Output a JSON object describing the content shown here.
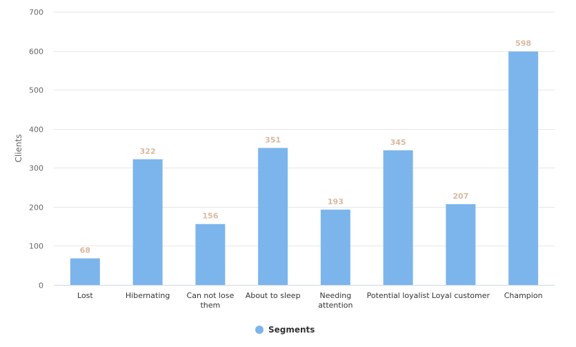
{
  "chart_data": {
    "type": "bar",
    "categories": [
      [
        "Lost"
      ],
      [
        "Hibernating"
      ],
      [
        "Can not lose",
        "them"
      ],
      [
        "About to sleep"
      ],
      [
        "Needing",
        "attention"
      ],
      [
        "Potential loyalist"
      ],
      [
        "Loyal customer"
      ],
      [
        "Champion"
      ]
    ],
    "series": [
      {
        "name": "Segments",
        "values": [
          68,
          322,
          156,
          351,
          193,
          345,
          207,
          598
        ]
      }
    ],
    "title": "",
    "xlabel": "",
    "ylabel": "Clients",
    "ylim": [
      0,
      700
    ],
    "yticks": [
      0,
      100,
      200,
      300,
      400,
      500,
      600,
      700
    ],
    "grid": true,
    "legend_position": "bottom",
    "colors": {
      "bar": "#7cb5ec",
      "grid": "#e6e6e6",
      "data_label": "#d9b8a0"
    }
  }
}
